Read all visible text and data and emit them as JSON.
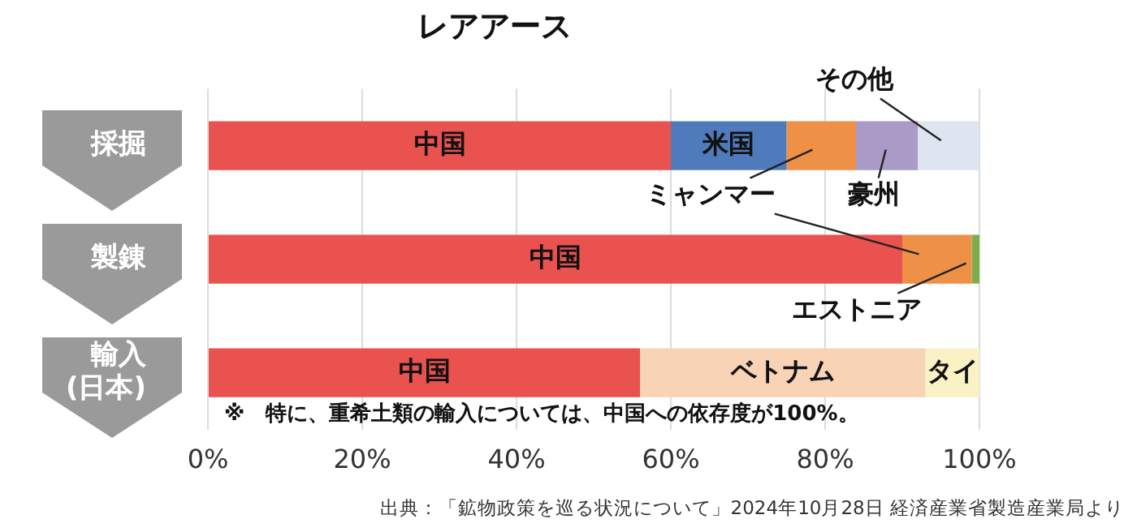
{
  "chart_data": {
    "type": "bar",
    "orientation": "horizontal",
    "stacked": true,
    "title": "レアアース",
    "categories": [
      "採掘",
      "製錬",
      "輸入\n(日本)"
    ],
    "series": [
      {
        "name": "中国",
        "color": "#e9524f",
        "values": [
          60,
          90,
          56
        ]
      },
      {
        "name": "米国",
        "color": "#4f7bbd",
        "values": [
          15,
          null,
          null
        ]
      },
      {
        "name": "ミャンマー",
        "color": "#ee9147",
        "values": [
          9,
          9,
          null
        ]
      },
      {
        "name": "豪州",
        "color": "#a99ac8",
        "values": [
          8,
          null,
          null
        ]
      },
      {
        "name": "その他",
        "color": "#dde5f0",
        "values": [
          8,
          null,
          null
        ]
      },
      {
        "name": "エストニア",
        "color": "#7fad4e",
        "values": [
          null,
          1,
          null
        ]
      },
      {
        "name": "ベトナム",
        "color": "#f8d3b5",
        "values": [
          null,
          null,
          37
        ]
      },
      {
        "name": "タイ",
        "color": "#faf1c4",
        "values": [
          null,
          null,
          7
        ]
      }
    ],
    "xlim": [
      0,
      100
    ],
    "xticks": [
      {
        "value": 0,
        "label": "0%"
      },
      {
        "value": 20,
        "label": "20%"
      },
      {
        "value": 40,
        "label": "40%"
      },
      {
        "value": 60,
        "label": "60%"
      },
      {
        "value": 80,
        "label": "80%"
      },
      {
        "value": 100,
        "label": "100%"
      }
    ],
    "grid": "x",
    "legend": false,
    "annotations": [
      "※　特に、重希土類の輸入については、中国への依存度が100%。",
      "出典：「鉱物政策を巡る状況について」2024年10月28日 経済産業省製造産業局より"
    ]
  }
}
